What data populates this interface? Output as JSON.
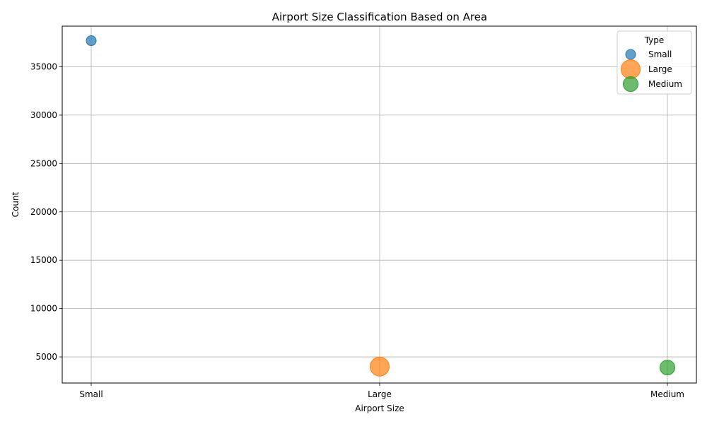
{
  "chart_data": {
    "type": "scatter",
    "title": "Airport Size Classification Based on Area",
    "xlabel": "Airport Size",
    "ylabel": "Count",
    "categories": [
      "Small",
      "Large",
      "Medium"
    ],
    "ylim": [
      2300,
      39200
    ],
    "yticks": [
      5000,
      10000,
      15000,
      20000,
      25000,
      30000,
      35000
    ],
    "ytick_labels": [
      "5000",
      "10000",
      "15000",
      "20000",
      "25000",
      "30000",
      "35000"
    ],
    "grid": true,
    "legend": {
      "title": "Type",
      "placement": "top-right"
    },
    "series": [
      {
        "name": "Small",
        "x": "Small",
        "y": 37700,
        "size_rank": 1,
        "color": "#1f77b4"
      },
      {
        "name": "Large",
        "x": "Large",
        "y": 4000,
        "size_rank": 3,
        "color": "#ff7f0e"
      },
      {
        "name": "Medium",
        "x": "Medium",
        "y": 3900,
        "size_rank": 2,
        "color": "#2ca02c"
      }
    ]
  }
}
